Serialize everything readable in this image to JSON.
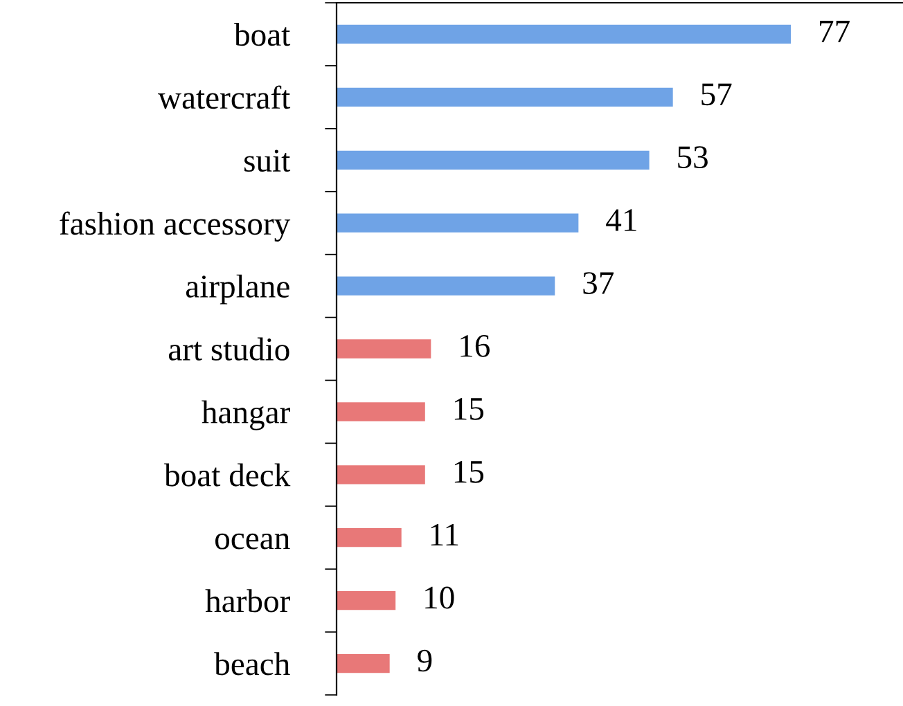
{
  "chart_data": {
    "type": "bar",
    "orientation": "horizontal",
    "categories": [
      "boat",
      "watercraft",
      "suit",
      "fashion accessory",
      "airplane",
      "art studio",
      "hangar",
      "boat deck",
      "ocean",
      "harbor",
      "beach"
    ],
    "values": [
      77,
      57,
      53,
      41,
      37,
      16,
      15,
      15,
      11,
      10,
      9
    ],
    "colors": [
      "#6fa3e6",
      "#6fa3e6",
      "#6fa3e6",
      "#6fa3e6",
      "#6fa3e6",
      "#e87878",
      "#e87878",
      "#e87878",
      "#e87878",
      "#e87878",
      "#e87878"
    ],
    "xlim": [
      0,
      96
    ],
    "tick_labels": "y",
    "data_labels": true,
    "grid": false,
    "legend": false
  }
}
